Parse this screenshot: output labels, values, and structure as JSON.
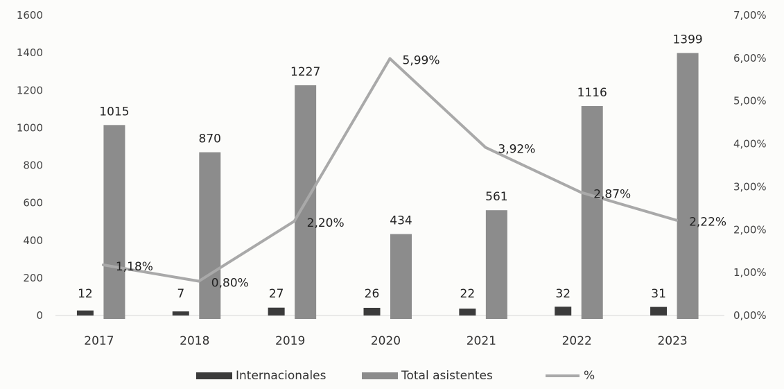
{
  "chart_data": {
    "type": "bar",
    "title": "",
    "categories": [
      "2017",
      "2018",
      "2019",
      "2020",
      "2021",
      "2022",
      "2023"
    ],
    "series": [
      {
        "name": "Internacionales",
        "kind": "bar",
        "axis": "left",
        "color": "#3b3b3b",
        "values": [
          12,
          7,
          27,
          26,
          22,
          32,
          31
        ],
        "labels": [
          "12",
          "7",
          "27",
          "26",
          "22",
          "32",
          "31"
        ]
      },
      {
        "name": "Total asistentes",
        "kind": "bar",
        "axis": "left",
        "color": "#8c8c8c",
        "values": [
          1015,
          870,
          1227,
          434,
          561,
          1116,
          1399
        ],
        "labels": [
          "1015",
          "870",
          "1227",
          "434",
          "561",
          "1116",
          "1399"
        ]
      },
      {
        "name": "%",
        "kind": "line",
        "axis": "right",
        "color": "#a9a9a9",
        "values": [
          1.18,
          0.8,
          2.2,
          5.99,
          3.92,
          2.87,
          2.22
        ],
        "labels": [
          "1,18%",
          "0,80%",
          "2,20%",
          "5,99%",
          "3,92%",
          "2,87%",
          "2,22%"
        ]
      }
    ],
    "y_left": {
      "range": [
        0,
        1600
      ],
      "ticks": [
        0,
        200,
        400,
        600,
        800,
        1000,
        1200,
        1400,
        1600
      ],
      "tick_labels": [
        "0",
        "200",
        "400",
        "600",
        "800",
        "1000",
        "1200",
        "1400",
        "1600"
      ]
    },
    "y_right": {
      "range": [
        0,
        7
      ],
      "ticks": [
        0,
        1,
        2,
        3,
        4,
        5,
        6,
        7
      ],
      "tick_labels": [
        "0,00%",
        "1,00%",
        "2,00%",
        "3,00%",
        "4,00%",
        "5,00%",
        "6,00%",
        "7,00%"
      ]
    },
    "grid": false,
    "legend_position": "bottom"
  }
}
